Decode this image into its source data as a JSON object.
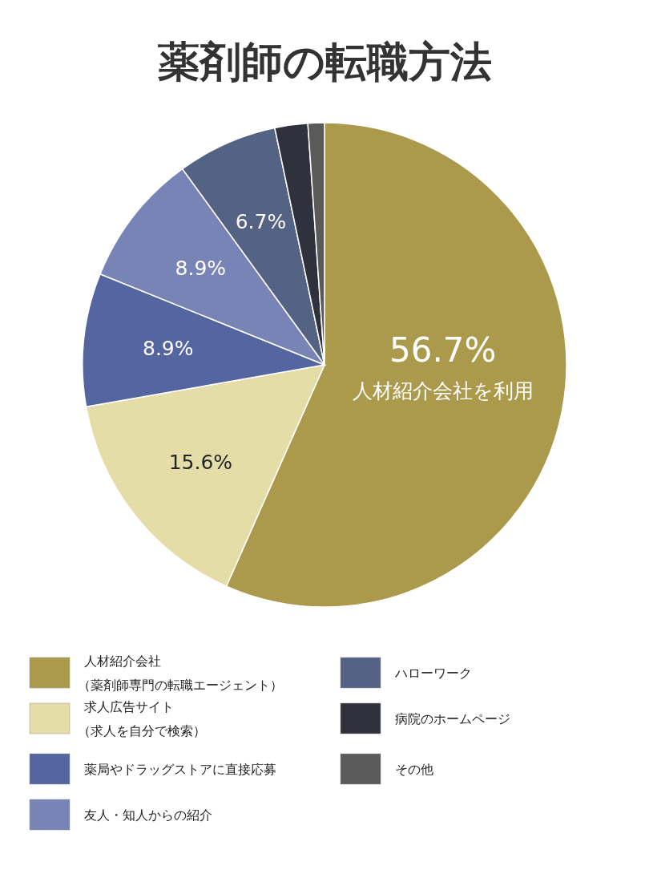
{
  "chart_data": {
    "type": "pie",
    "title": "薬剤師の転職方法",
    "categories": [
      "人材紹介会社（薬剤師専門の転職エージェント）",
      "求人広告サイト（求人を自分で検索）",
      "薬局やドラッグストアに直接応募",
      "友人・知人からの紹介",
      "ハローワーク",
      "病院のホームページ",
      "その他"
    ],
    "values": [
      56.7,
      15.6,
      8.9,
      8.9,
      6.7,
      2.2,
      1.1
    ],
    "colors": [
      "#ab9a4c",
      "#e5dda8",
      "#5565a0",
      "#7784b5",
      "#546284",
      "#2f323c",
      "#5a5a5a"
    ],
    "value_labels": [
      "56.7%",
      "15.6%",
      "8.9%",
      "8.9%",
      "6.7%",
      null,
      null
    ],
    "annotations": [
      "人材紹介会社を利用"
    ],
    "legend": "bottom"
  }
}
